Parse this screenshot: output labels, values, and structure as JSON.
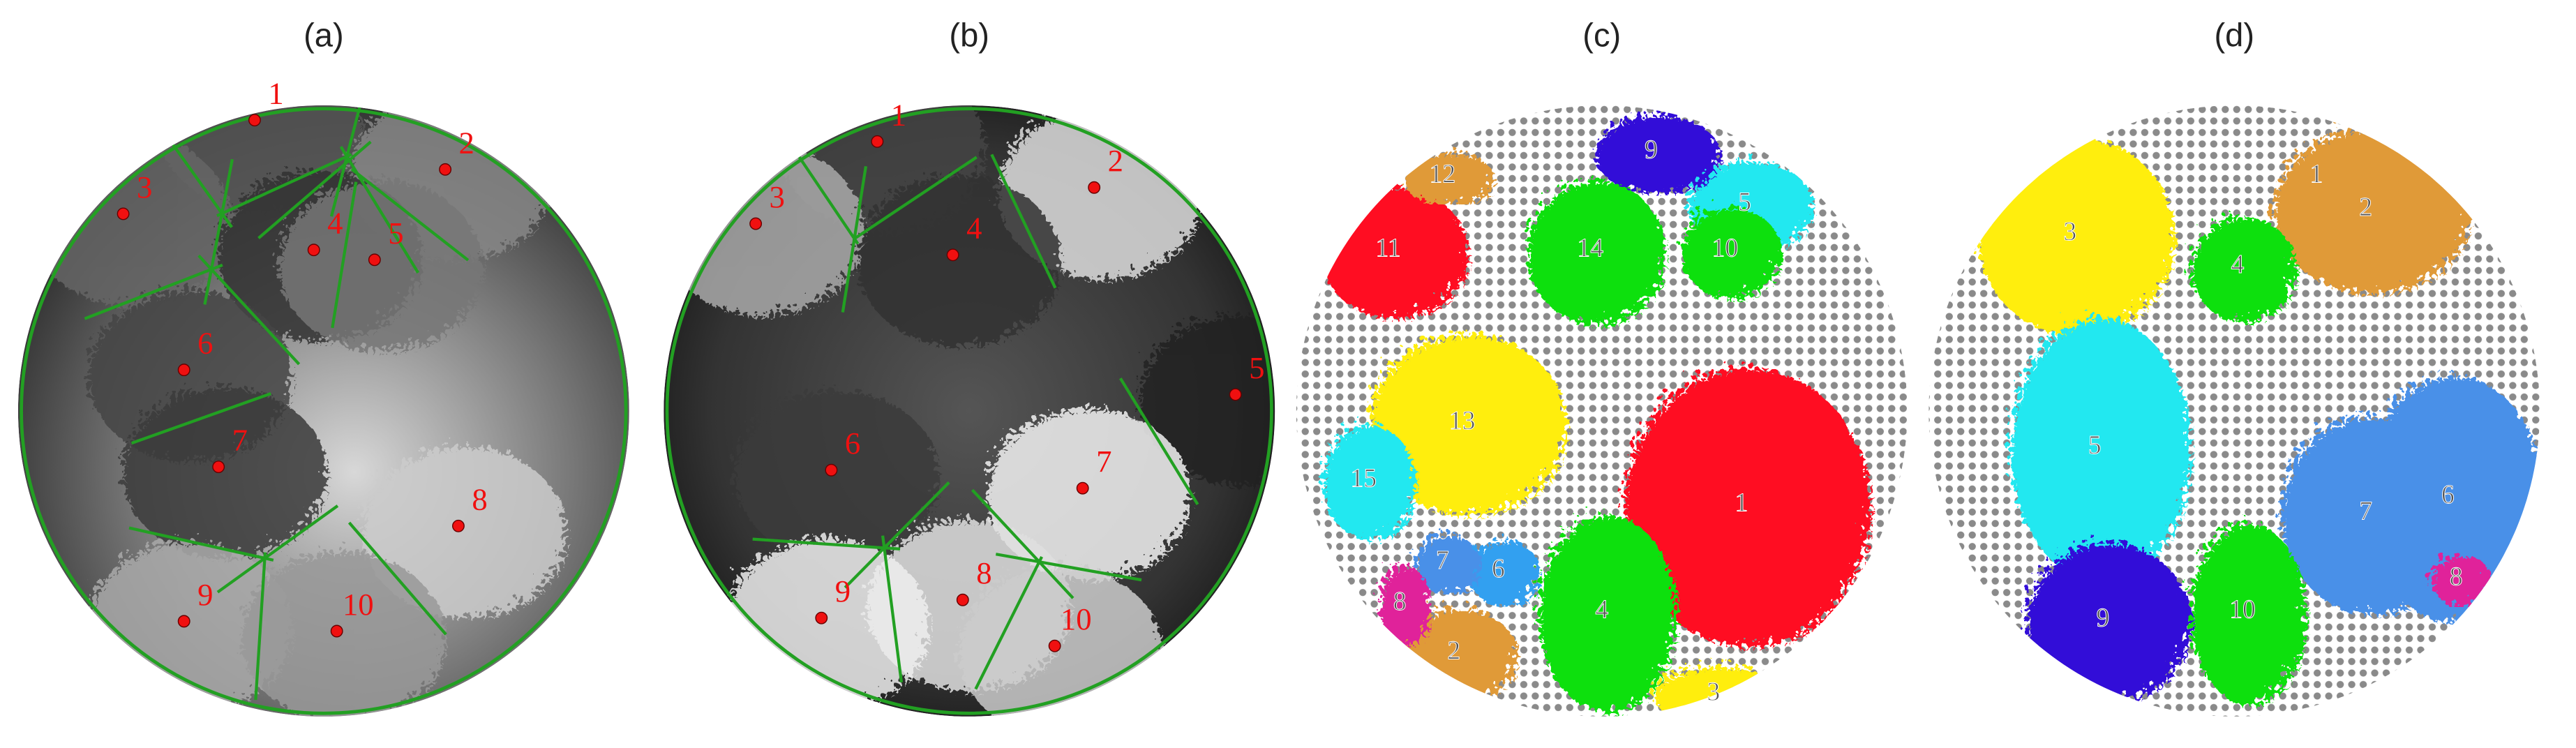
{
  "panels": [
    {
      "label": "(a)",
      "regions": [
        "1",
        "2",
        "3",
        "4",
        "5",
        "6",
        "7",
        "8",
        "9",
        "10"
      ]
    },
    {
      "label": "(b)",
      "regions": [
        "1",
        "2",
        "3",
        "4",
        "5",
        "6",
        "7",
        "8",
        "9",
        "10"
      ]
    },
    {
      "label": "(c)",
      "clusters": [
        "1",
        "2",
        "3",
        "4",
        "5",
        "6",
        "7",
        "8",
        "9",
        "10",
        "11",
        "12",
        "13",
        "14",
        "15"
      ]
    },
    {
      "label": "(d)",
      "clusters": [
        "1",
        "2",
        "3",
        "4",
        "5",
        "6",
        "7",
        "8",
        "9",
        "10"
      ]
    }
  ]
}
